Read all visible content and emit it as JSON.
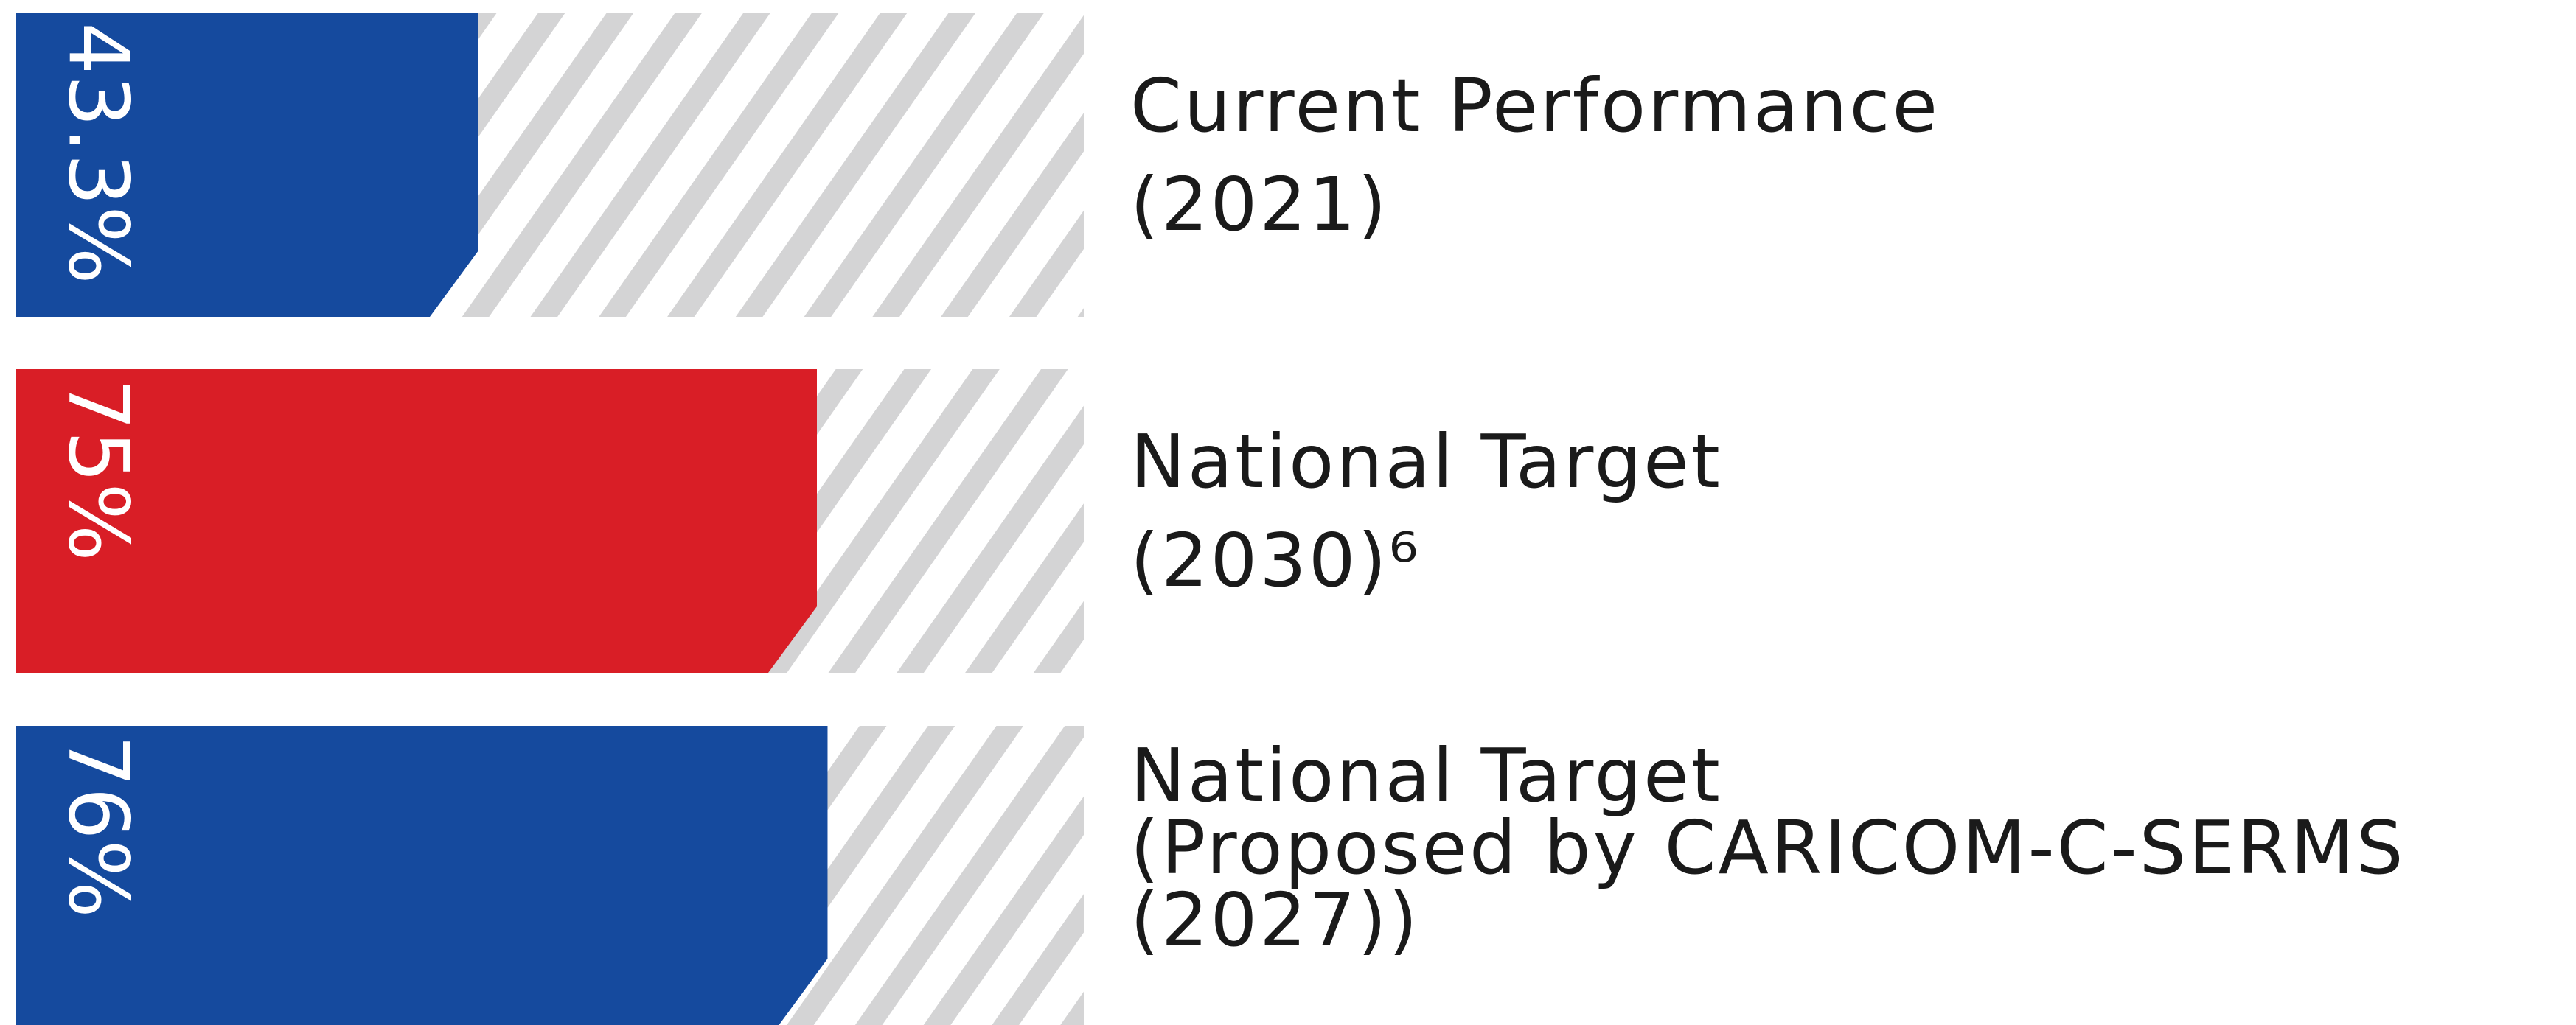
{
  "chart_data": {
    "type": "bar",
    "categories": [
      [
        "Current Performance",
        "(2021)"
      ],
      [
        "National Target",
        "(2030)⁶"
      ],
      [
        "National Target",
        "(Proposed by CARICOM-C-SERMS",
        "(2027))"
      ]
    ],
    "values": [
      43.3,
      75,
      76
    ],
    "value_labels": [
      "43.3%",
      "75%",
      "76%"
    ],
    "colors": [
      "#154a9e",
      "#d91e26",
      "#154a9e"
    ],
    "background_color": "#d4d4d5",
    "xlim": [
      0,
      100
    ]
  }
}
